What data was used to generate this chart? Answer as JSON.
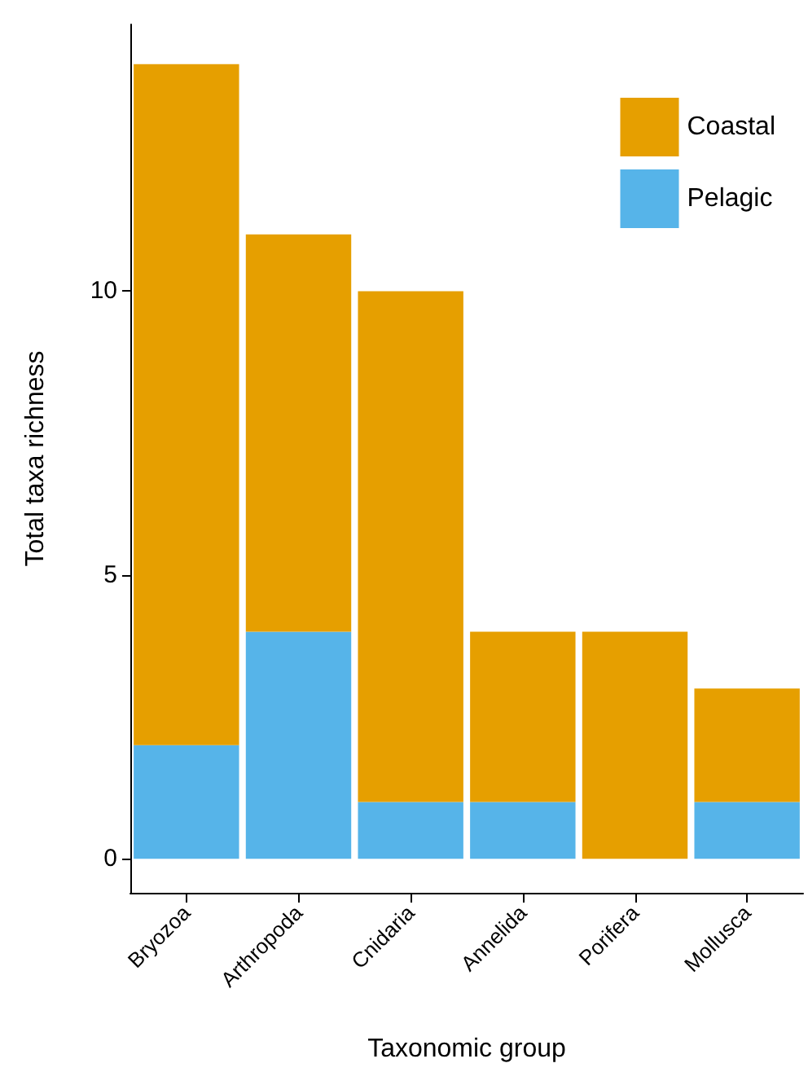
{
  "chart_data": {
    "type": "bar",
    "stacked": true,
    "xlabel": "Taxonomic group",
    "ylabel": "Total taxa richness",
    "categories": [
      "Bryozoa",
      "Arthropoda",
      "Cnidaria",
      "Annelida",
      "Porifera",
      "Mollusca"
    ],
    "series": [
      {
        "name": "Pelagic",
        "color": "#56b4e9",
        "values": [
          2,
          4,
          1,
          1,
          0,
          1
        ]
      },
      {
        "name": "Coastal",
        "color": "#e69f00",
        "values": [
          12,
          7,
          9,
          3,
          4,
          2
        ]
      }
    ],
    "ylim": [
      -0.6,
      14.7
    ],
    "yticks": [
      0,
      5,
      10
    ],
    "grid": false,
    "legend": "top right"
  }
}
